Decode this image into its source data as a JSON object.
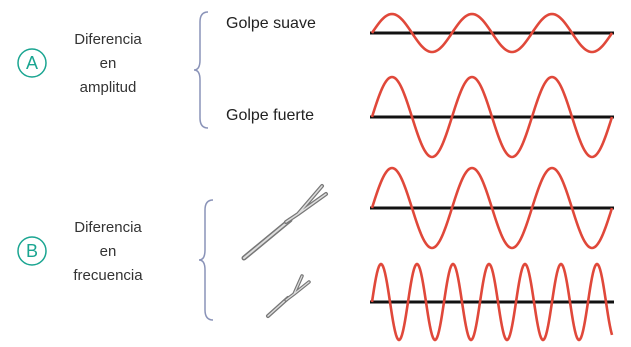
{
  "section_a": {
    "marker": "A",
    "label": [
      "Diferencia",
      "en",
      "amplitud"
    ],
    "items": [
      "Golpe suave",
      "Golpe fuerte"
    ]
  },
  "section_b": {
    "marker": "B",
    "label": [
      "Diferencia",
      "en",
      "frecuencia"
    ]
  }
}
